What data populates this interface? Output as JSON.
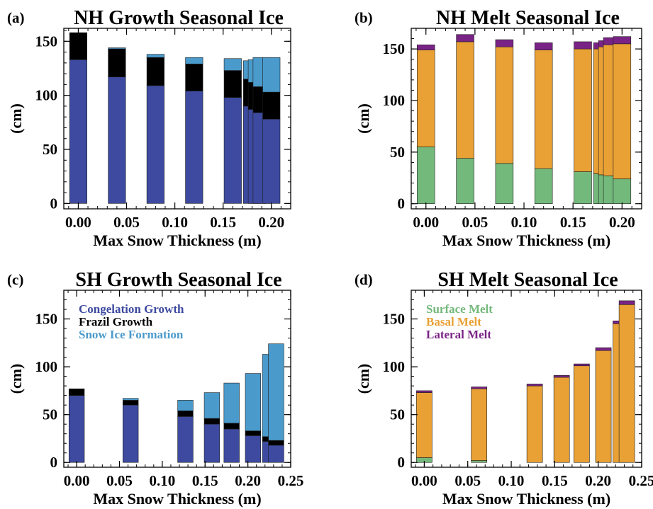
{
  "colors": {
    "congelation": "#3d4aa0",
    "frazil": "#000000",
    "snowice": "#4a9acb",
    "surface": "#74b97c",
    "basal": "#e9a135",
    "lateral": "#7a2386"
  },
  "chart_data": [
    {
      "id": "a",
      "panel_label": "(a)",
      "type": "bar",
      "stacked": true,
      "title": "NH Growth Seasonal Ice",
      "xlabel": "Max Snow Thickness (m)",
      "ylabel": "(cm)",
      "xlim": [
        -0.015,
        0.22
      ],
      "ylim": [
        -5,
        162
      ],
      "xticks": [
        0.0,
        0.05,
        0.1,
        0.15,
        0.2
      ],
      "xtick_labels": [
        "0.00",
        "0.05",
        "0.10",
        "0.15",
        "0.20"
      ],
      "yticks": [
        0,
        50,
        100,
        150
      ],
      "ytick_labels": [
        "0",
        "50",
        "100",
        "150"
      ],
      "bar_width": 0.018,
      "x": [
        0.0,
        0.04,
        0.08,
        0.12,
        0.16,
        0.18,
        0.185,
        0.19,
        0.2
      ],
      "series": [
        {
          "key": "congelation",
          "values": [
            133,
            117,
            109,
            104,
            98,
            90,
            87,
            84,
            78
          ]
        },
        {
          "key": "frazil",
          "values": [
            25,
            26,
            26,
            25,
            25,
            25,
            25,
            24,
            25
          ]
        },
        {
          "key": "snowice",
          "values": [
            0,
            1,
            3,
            6,
            11,
            17,
            21,
            27,
            32
          ]
        }
      ],
      "legend": []
    },
    {
      "id": "b",
      "panel_label": "(b)",
      "type": "bar",
      "stacked": true,
      "title": "NH Melt Seasonal Ice",
      "xlabel": "Max Snow Thickness (m)",
      "ylabel": "(cm)",
      "xlim": [
        -0.015,
        0.22
      ],
      "ylim": [
        -5,
        170
      ],
      "xticks": [
        0.0,
        0.05,
        0.1,
        0.15,
        0.2
      ],
      "xtick_labels": [
        "0.00",
        "0.05",
        "0.10",
        "0.15",
        "0.20"
      ],
      "yticks": [
        0,
        50,
        100,
        150
      ],
      "ytick_labels": [
        "0",
        "50",
        "100",
        "150"
      ],
      "bar_width": 0.018,
      "x": [
        0.0,
        0.04,
        0.08,
        0.12,
        0.16,
        0.18,
        0.185,
        0.19,
        0.2
      ],
      "series": [
        {
          "key": "surface",
          "values": [
            55,
            44,
            39,
            34,
            31,
            29,
            28,
            27,
            24
          ]
        },
        {
          "key": "basal",
          "values": [
            94,
            113,
            113,
            115,
            119,
            121,
            124,
            127,
            131
          ]
        },
        {
          "key": "lateral",
          "values": [
            5,
            7,
            7,
            7,
            7,
            6,
            6,
            7,
            7
          ]
        }
      ],
      "legend": []
    },
    {
      "id": "c",
      "panel_label": "(c)",
      "type": "bar",
      "stacked": true,
      "title": "SH Growth Seasonal Ice",
      "xlabel": "Max Snow Thickness (m)",
      "ylabel": "(cm)",
      "xlim": [
        -0.015,
        0.25
      ],
      "ylim": [
        -5,
        180
      ],
      "xticks": [
        0.0,
        0.05,
        0.1,
        0.15,
        0.2,
        0.25
      ],
      "xtick_labels": [
        "0.00",
        "0.05",
        "0.10",
        "0.15",
        "0.20",
        "0.25"
      ],
      "yticks": [
        0,
        50,
        100,
        150
      ],
      "ytick_labels": [
        "0",
        "50",
        "100",
        "150"
      ],
      "bar_width": 0.018,
      "x": [
        0.0,
        0.063,
        0.127,
        0.158,
        0.181,
        0.206,
        0.226,
        0.233
      ],
      "series": [
        {
          "key": "congelation",
          "values": [
            70,
            60,
            48,
            40,
            35,
            28,
            22,
            18
          ]
        },
        {
          "key": "frazil",
          "values": [
            7,
            5,
            6,
            6,
            6,
            5,
            5,
            5
          ]
        },
        {
          "key": "snowice",
          "values": [
            0,
            2,
            11,
            27,
            42,
            60,
            86,
            101
          ]
        }
      ],
      "legend": [
        "Congelation Growth",
        "Frazil Growth",
        "Snow Ice Formation"
      ]
    },
    {
      "id": "d",
      "panel_label": "(d)",
      "type": "bar",
      "stacked": true,
      "title": "SH Melt Seasonal Ice",
      "xlabel": "Max Snow Thickness (m)",
      "ylabel": "(cm)",
      "xlim": [
        -0.015,
        0.25
      ],
      "ylim": [
        -5,
        180
      ],
      "xticks": [
        0.0,
        0.05,
        0.1,
        0.15,
        0.2,
        0.25
      ],
      "xtick_labels": [
        "0.00",
        "0.05",
        "0.10",
        "0.15",
        "0.20",
        "0.25"
      ],
      "yticks": [
        0,
        50,
        100,
        150
      ],
      "ytick_labels": [
        "0",
        "50",
        "100",
        "150"
      ],
      "bar_width": 0.018,
      "x": [
        0.0,
        0.063,
        0.127,
        0.158,
        0.181,
        0.206,
        0.226,
        0.233
      ],
      "series": [
        {
          "key": "surface",
          "values": [
            5,
            2,
            0,
            0,
            0,
            0,
            0,
            0
          ]
        },
        {
          "key": "basal",
          "values": [
            68,
            75,
            80,
            89,
            101,
            117,
            145,
            165
          ]
        },
        {
          "key": "lateral",
          "values": [
            2,
            2,
            2,
            2,
            2,
            3,
            3,
            4
          ]
        }
      ],
      "legend": [
        "Surface Melt",
        "Basal Melt",
        "Lateral Melt"
      ]
    }
  ]
}
